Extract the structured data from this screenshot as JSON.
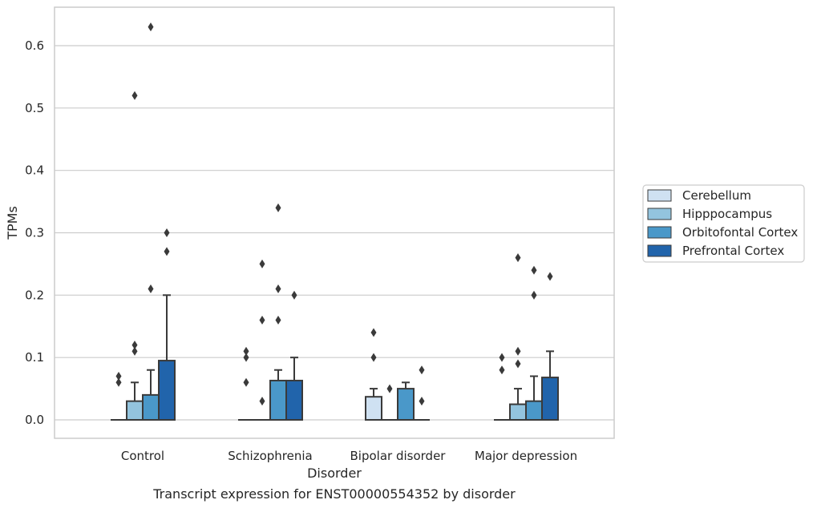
{
  "colors": {
    "Cerebellum": "#cfe1f2",
    "Hipppocampus": "#93c4de",
    "Orbitofontal Cortex": "#4a98c9",
    "Prefrontal Cortex": "#2164ab",
    "grid": "#cccccc",
    "frame": "#cccccc",
    "edge": "#3a3a3a",
    "flier": "#3a3a3a"
  },
  "chart_data": {
    "type": "box",
    "caption": "Transcript expression for ENST00000554352 by disorder",
    "xlabel": "Disorder",
    "ylabel": "TPMs",
    "ylim": [
      -0.03,
      0.66
    ],
    "yticks": [
      0.0,
      0.1,
      0.2,
      0.3,
      0.4,
      0.5,
      0.6
    ],
    "ytick_labels": [
      "0.0",
      "0.1",
      "0.2",
      "0.3",
      "0.4",
      "0.5",
      "0.6"
    ],
    "grid": "horizontal",
    "legend_position": "right",
    "categories": [
      "Control",
      "Schizophrenia",
      "Bipolar disorder",
      "Major depression"
    ],
    "series": [
      {
        "name": "Cerebellum",
        "boxes": [
          {
            "q1": 0,
            "median": 0,
            "q3": 0,
            "whisker_low": 0,
            "whisker_high": 0,
            "fliers": [
              0.07,
              0.06
            ]
          },
          {
            "q1": 0,
            "median": 0,
            "q3": 0,
            "whisker_low": 0,
            "whisker_high": 0,
            "fliers": [
              0.11,
              0.1,
              0.06
            ]
          },
          {
            "q1": 0,
            "median": 0,
            "q3": 0.037,
            "whisker_low": 0,
            "whisker_high": 0.05,
            "fliers": [
              0.14,
              0.1
            ]
          },
          {
            "q1": 0,
            "median": 0,
            "q3": 0,
            "whisker_low": 0,
            "whisker_high": 0,
            "fliers": [
              0.1,
              0.08
            ]
          }
        ]
      },
      {
        "name": "Hipppocampus",
        "boxes": [
          {
            "q1": 0,
            "median": 0,
            "q3": 0.03,
            "whisker_low": 0,
            "whisker_high": 0.06,
            "fliers": [
              0.52,
              0.12,
              0.11
            ]
          },
          {
            "q1": 0,
            "median": 0,
            "q3": 0,
            "whisker_low": 0,
            "whisker_high": 0,
            "fliers": [
              0.25,
              0.16,
              0.03
            ]
          },
          {
            "q1": 0,
            "median": 0,
            "q3": 0,
            "whisker_low": 0,
            "whisker_high": 0,
            "fliers": [
              0.05
            ]
          },
          {
            "q1": 0,
            "median": 0,
            "q3": 0.025,
            "whisker_low": 0,
            "whisker_high": 0.05,
            "fliers": [
              0.26,
              0.11,
              0.09
            ]
          }
        ]
      },
      {
        "name": "Orbitofontal Cortex",
        "boxes": [
          {
            "q1": 0,
            "median": 0,
            "q3": 0.04,
            "whisker_low": 0,
            "whisker_high": 0.08,
            "fliers": [
              0.63,
              0.21
            ]
          },
          {
            "q1": 0,
            "median": 0,
            "q3": 0.063,
            "whisker_low": 0,
            "whisker_high": 0.08,
            "fliers": [
              0.34,
              0.21,
              0.16
            ]
          },
          {
            "q1": 0,
            "median": 0,
            "q3": 0.05,
            "whisker_low": 0,
            "whisker_high": 0.06,
            "fliers": []
          },
          {
            "q1": 0,
            "median": 0,
            "q3": 0.03,
            "whisker_low": 0,
            "whisker_high": 0.07,
            "fliers": [
              0.24,
              0.2
            ]
          }
        ]
      },
      {
        "name": "Prefrontal Cortex",
        "boxes": [
          {
            "q1": 0,
            "median": 0,
            "q3": 0.095,
            "whisker_low": 0,
            "whisker_high": 0.2,
            "fliers": [
              0.3,
              0.27
            ]
          },
          {
            "q1": 0,
            "median": 0,
            "q3": 0.063,
            "whisker_low": 0,
            "whisker_high": 0.1,
            "fliers": [
              0.2
            ]
          },
          {
            "q1": 0,
            "median": 0,
            "q3": 0,
            "whisker_low": 0,
            "whisker_high": 0,
            "fliers": [
              0.08,
              0.03
            ]
          },
          {
            "q1": 0,
            "median": 0,
            "q3": 0.068,
            "whisker_low": 0,
            "whisker_high": 0.11,
            "fliers": [
              0.23
            ]
          }
        ]
      }
    ]
  }
}
